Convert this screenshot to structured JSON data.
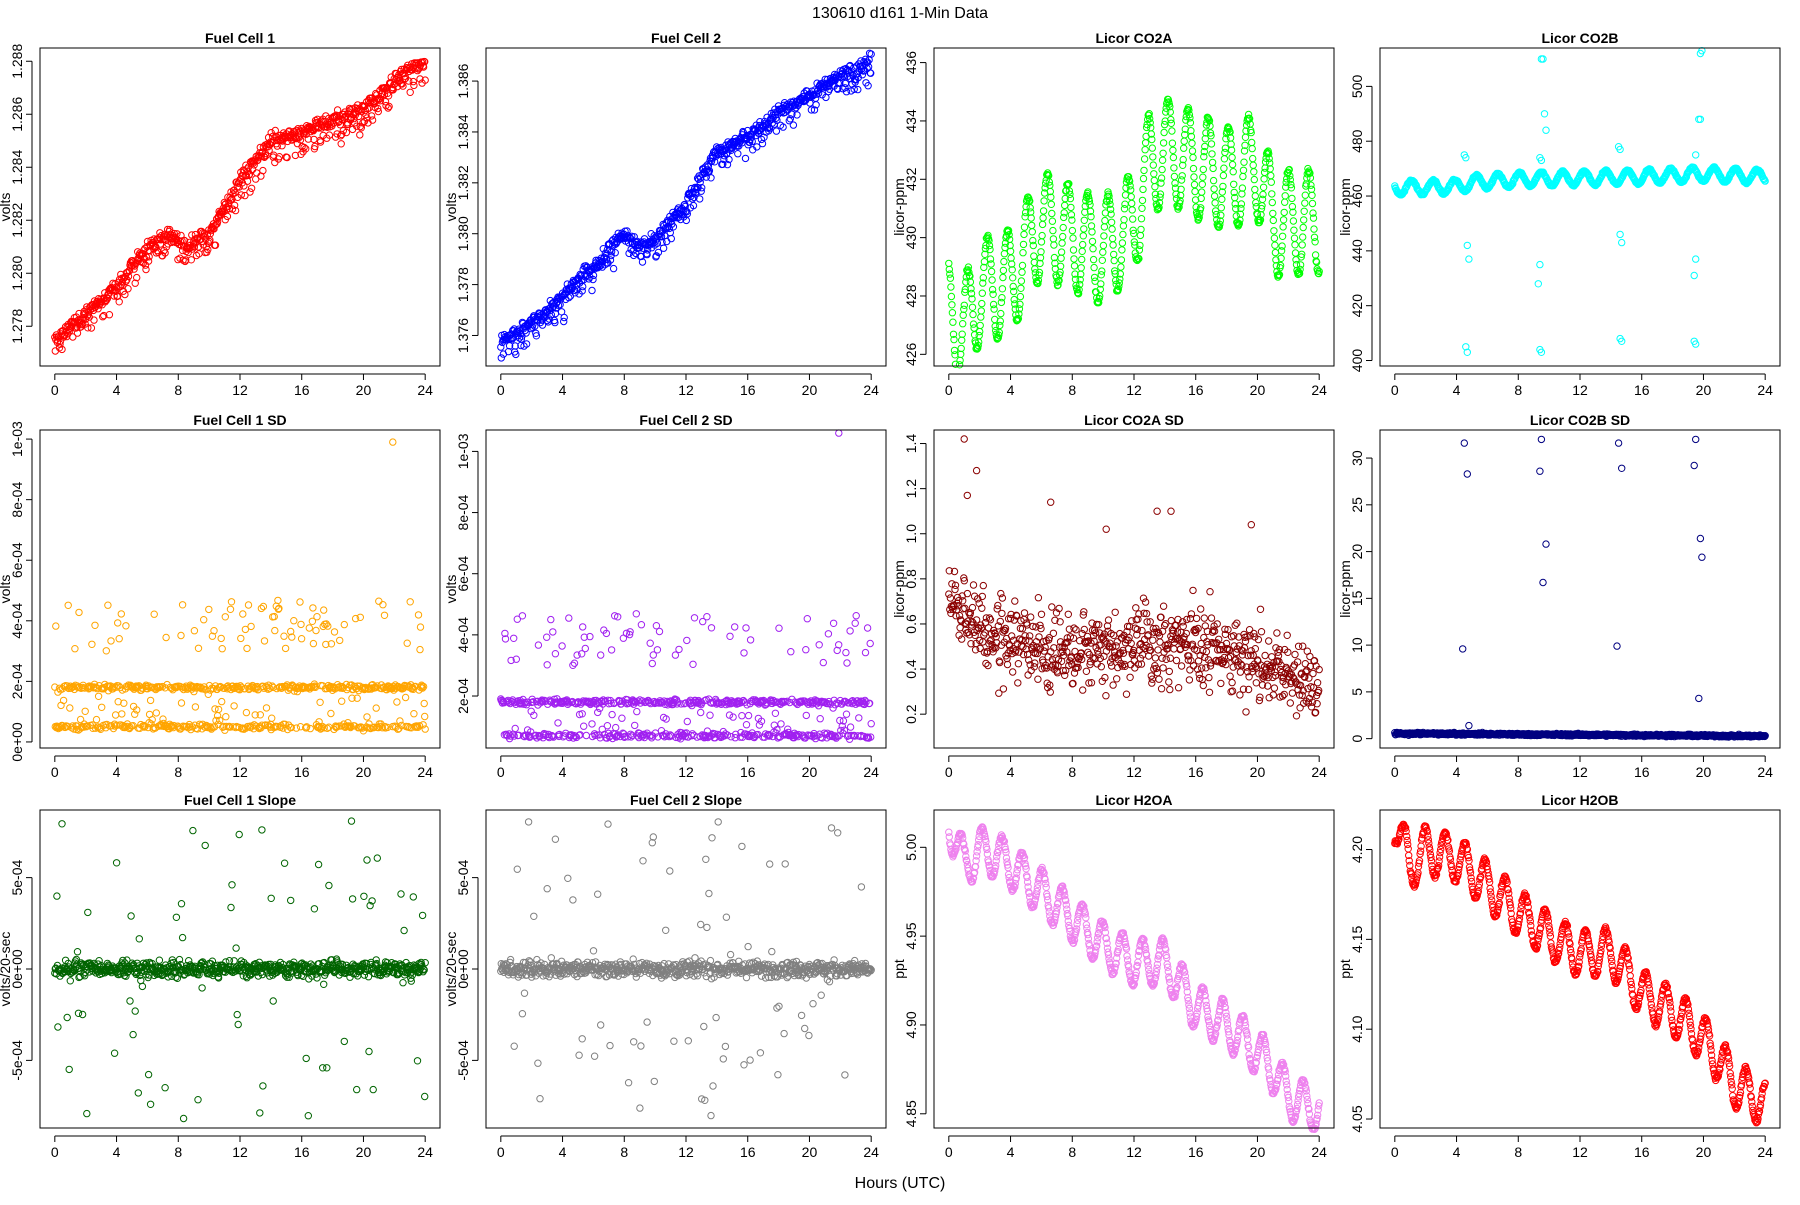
{
  "figure": {
    "title": "130610    d161    1-Min Data",
    "xlabel": "Hours (UTC)"
  },
  "chart_data": [
    {
      "type": "scatter",
      "title": "Fuel Cell 1",
      "ylabel": "volts",
      "color": "#ff0000",
      "xlim": [
        0,
        24
      ],
      "xticks": [
        0,
        4,
        8,
        12,
        16,
        20,
        24
      ],
      "ylim": [
        1.2765,
        1.2885
      ],
      "yticks": [
        1.278,
        1.28,
        1.282,
        1.284,
        1.286,
        1.288
      ],
      "ytick_labels": [
        "1.278",
        "1.280",
        "1.282",
        "1.284",
        "1.286",
        "1.288"
      ],
      "trend": [
        [
          0,
          1.2775
        ],
        [
          2,
          1.2785
        ],
        [
          4,
          1.2795
        ],
        [
          6,
          1.281
        ],
        [
          7.5,
          1.2815
        ],
        [
          8.5,
          1.281
        ],
        [
          10,
          1.2815
        ],
        [
          12,
          1.2835
        ],
        [
          14,
          1.285
        ],
        [
          16,
          1.2853
        ],
        [
          18,
          1.2858
        ],
        [
          20,
          1.2862
        ],
        [
          22,
          1.2873
        ],
        [
          24,
          1.288
        ]
      ],
      "pattern": "band",
      "spread": 0.00045,
      "lowtail": 0.0008
    },
    {
      "type": "scatter",
      "title": "Fuel Cell 2",
      "ylabel": "volts",
      "color": "#0000ff",
      "xlim": [
        0,
        24
      ],
      "xticks": [
        0,
        4,
        8,
        12,
        16,
        20,
        24
      ],
      "ylim": [
        1.3748,
        1.3873
      ],
      "yticks": [
        1.376,
        1.378,
        1.38,
        1.382,
        1.384,
        1.386
      ],
      "ytick_labels": [
        "1.376",
        "1.378",
        "1.380",
        "1.382",
        "1.384",
        "1.386"
      ],
      "trend": [
        [
          0,
          1.3758
        ],
        [
          2,
          1.3765
        ],
        [
          4,
          1.3775
        ],
        [
          5,
          1.3783
        ],
        [
          6,
          1.3786
        ],
        [
          7,
          1.3795
        ],
        [
          8,
          1.38
        ],
        [
          9,
          1.3795
        ],
        [
          10,
          1.3798
        ],
        [
          12,
          1.3812
        ],
        [
          14,
          1.3832
        ],
        [
          16,
          1.3838
        ],
        [
          18,
          1.3848
        ],
        [
          20,
          1.3855
        ],
        [
          22,
          1.3862
        ],
        [
          24,
          1.3868
        ]
      ],
      "pattern": "band",
      "spread": 0.00045,
      "lowtail": 0.0008
    },
    {
      "type": "scatter",
      "title": "Licor CO2A",
      "ylabel": "licor-ppm",
      "color": "#00ff00",
      "xlim": [
        0,
        24
      ],
      "xticks": [
        0,
        4,
        8,
        12,
        16,
        20,
        24
      ],
      "ylim": [
        425.6,
        436.5
      ],
      "yticks": [
        426,
        428,
        430,
        432,
        434,
        436
      ],
      "ytick_labels": [
        "426",
        "428",
        "430",
        "432",
        "434",
        "436"
      ],
      "trend": [
        [
          0,
          427.5
        ],
        [
          1,
          426.8
        ],
        [
          2,
          428.2
        ],
        [
          3,
          428.3
        ],
        [
          4,
          428.5
        ],
        [
          5,
          429.5
        ],
        [
          6,
          430.5
        ],
        [
          8,
          430.0
        ],
        [
          10,
          429.5
        ],
        [
          12,
          430.5
        ],
        [
          13,
          432.5
        ],
        [
          14,
          433.0
        ],
        [
          16,
          432.5
        ],
        [
          18,
          432.0
        ],
        [
          20,
          432.5
        ],
        [
          21,
          430.5
        ],
        [
          22,
          430.5
        ],
        [
          23,
          430.5
        ],
        [
          24,
          430.6
        ]
      ],
      "pattern": "osc",
      "amp": 1.8,
      "period": 1.3,
      "spread": 0.15
    },
    {
      "type": "scatter",
      "title": "Licor CO2B",
      "ylabel": "licor-ppm",
      "color": "#00ffff",
      "xlim": [
        0,
        24
      ],
      "xticks": [
        0,
        4,
        8,
        12,
        16,
        20,
        24
      ],
      "ylim": [
        398,
        514
      ],
      "yticks": [
        400,
        420,
        440,
        460,
        480,
        500
      ],
      "ytick_labels": [
        "400",
        "420",
        "440",
        "460",
        "480",
        "500"
      ],
      "trend": [
        [
          0,
          463
        ],
        [
          4,
          463.5
        ],
        [
          5,
          465
        ],
        [
          8,
          466
        ],
        [
          12,
          466.5
        ],
        [
          16,
          467
        ],
        [
          20,
          468
        ],
        [
          24,
          467
        ]
      ],
      "pattern": "osc",
      "amp": 2.5,
      "period": 1.4,
      "spread": 0.6,
      "outliers": [
        [
          4.5,
          475
        ],
        [
          4.6,
          474
        ],
        [
          4.7,
          442
        ],
        [
          4.8,
          437
        ],
        [
          4.6,
          405
        ],
        [
          4.7,
          403
        ],
        [
          9.4,
          474
        ],
        [
          9.5,
          473
        ],
        [
          9.5,
          510
        ],
        [
          9.6,
          510
        ],
        [
          9.7,
          490
        ],
        [
          9.8,
          484
        ],
        [
          9.4,
          435
        ],
        [
          9.3,
          428
        ],
        [
          9.4,
          404
        ],
        [
          9.5,
          403
        ],
        [
          14.5,
          478
        ],
        [
          14.6,
          477
        ],
        [
          14.6,
          446
        ],
        [
          14.7,
          443
        ],
        [
          14.6,
          408
        ],
        [
          14.7,
          407
        ],
        [
          19.5,
          475
        ],
        [
          19.7,
          488
        ],
        [
          19.8,
          488
        ],
        [
          19.8,
          512
        ],
        [
          19.9,
          513
        ],
        [
          19.5,
          437
        ],
        [
          19.4,
          431
        ],
        [
          19.4,
          407
        ],
        [
          19.5,
          406
        ]
      ]
    },
    {
      "type": "scatter",
      "title": "Fuel Cell 1 SD",
      "ylabel": "volts",
      "color": "#ffa500",
      "xlim": [
        0,
        24
      ],
      "xticks": [
        0,
        4,
        8,
        12,
        16,
        20,
        24
      ],
      "ylim": [
        -2e-05,
        0.00103
      ],
      "yticks": [
        0,
        0.0002,
        0.0004,
        0.0006,
        0.0008,
        0.001
      ],
      "ytick_labels": [
        "0e+00",
        "2e-04",
        "4e-04",
        "6e-04",
        "8e-04",
        "1e-03"
      ],
      "pattern": "levels",
      "levels": [
        0.00018,
        5e-05
      ],
      "level_spread": 1.5e-05,
      "upper": [
        0.0003,
        0.00047
      ],
      "outliers": [
        [
          21.9,
          0.00099
        ]
      ]
    },
    {
      "type": "scatter",
      "title": "Fuel Cell 2 SD",
      "ylabel": "volts",
      "color": "#a020f0",
      "xlim": [
        0,
        24
      ],
      "xticks": [
        0,
        4,
        8,
        12,
        16,
        20,
        24
      ],
      "ylim": [
        3e-05,
        0.00107
      ],
      "yticks": [
        0.0002,
        0.0004,
        0.0006,
        0.0008,
        0.001
      ],
      "ytick_labels": [
        "2e-04",
        "4e-04",
        "6e-04",
        "8e-04",
        "1e-03"
      ],
      "pattern": "levels",
      "levels": [
        0.00018,
        7e-05
      ],
      "level_spread": 1.5e-05,
      "upper": [
        0.0003,
        0.00047
      ],
      "outliers": [
        [
          21.9,
          0.00106
        ]
      ]
    },
    {
      "type": "scatter",
      "title": "Licor CO2A SD",
      "ylabel": "licor-ppm",
      "color": "#8b0000",
      "xlim": [
        0,
        24
      ],
      "xticks": [
        0,
        4,
        8,
        12,
        16,
        20,
        24
      ],
      "ylim": [
        0.05,
        1.46
      ],
      "yticks": [
        0.2,
        0.4,
        0.6,
        0.8,
        1.0,
        1.2,
        1.4
      ],
      "ytick_labels": [
        "0.2",
        "0.4",
        "0.6",
        "0.8",
        "1.0",
        "1.2",
        "1.4"
      ],
      "pattern": "cloud",
      "trend": [
        [
          0,
          0.75
        ],
        [
          2,
          0.55
        ],
        [
          6,
          0.5
        ],
        [
          12,
          0.5
        ],
        [
          16,
          0.5
        ],
        [
          20,
          0.45
        ],
        [
          24,
          0.3
        ]
      ],
      "spread": 0.18,
      "outliers": [
        [
          1.0,
          1.42
        ],
        [
          1.8,
          1.28
        ],
        [
          1.2,
          1.17
        ],
        [
          6.6,
          1.14
        ],
        [
          13.5,
          1.1
        ],
        [
          14.4,
          1.1
        ],
        [
          10.2,
          1.02
        ],
        [
          19.6,
          1.04
        ]
      ]
    },
    {
      "type": "scatter",
      "title": "Licor CO2B SD",
      "ylabel": "licor-ppm",
      "color": "#000080",
      "xlim": [
        0,
        24
      ],
      "xticks": [
        0,
        4,
        8,
        12,
        16,
        20,
        24
      ],
      "ylim": [
        -1,
        33
      ],
      "yticks": [
        0,
        5,
        10,
        15,
        20,
        25,
        30
      ],
      "ytick_labels": [
        "0",
        "5",
        "10",
        "15",
        "20",
        "25",
        "30"
      ],
      "pattern": "flat",
      "base": 0.55,
      "spread": 0.2,
      "outliers": [
        [
          4.5,
          31.6
        ],
        [
          4.7,
          28.3
        ],
        [
          4.4,
          9.6
        ],
        [
          4.8,
          1.4
        ],
        [
          9.5,
          32.0
        ],
        [
          9.4,
          28.6
        ],
        [
          9.8,
          20.8
        ],
        [
          9.6,
          16.7
        ],
        [
          14.5,
          31.6
        ],
        [
          14.7,
          28.9
        ],
        [
          14.4,
          9.9
        ],
        [
          19.5,
          32.0
        ],
        [
          19.4,
          29.2
        ],
        [
          19.8,
          21.4
        ],
        [
          19.9,
          19.4
        ],
        [
          19.7,
          4.3
        ]
      ]
    },
    {
      "type": "scatter",
      "title": "Fuel Cell 1 Slope",
      "ylabel": "volts/20-sec",
      "color": "#006400",
      "xlim": [
        0,
        24
      ],
      "xticks": [
        0,
        4,
        8,
        12,
        16,
        20,
        24
      ],
      "ylim": [
        -0.00087,
        0.00087
      ],
      "yticks": [
        -0.0005,
        0,
        0.0005
      ],
      "ytick_labels": [
        "-5e-04",
        "0e+00",
        "5e-04"
      ],
      "pattern": "slope",
      "core": 4.5e-05,
      "wide": 0.00082
    },
    {
      "type": "scatter",
      "title": "Fuel Cell 2 Slope",
      "ylabel": "volts/20-sec",
      "color": "#808080",
      "xlim": [
        0,
        24
      ],
      "xticks": [
        0,
        4,
        8,
        12,
        16,
        20,
        24
      ],
      "ylim": [
        -0.00087,
        0.00087
      ],
      "yticks": [
        -0.0005,
        0,
        0.0005
      ],
      "ytick_labels": [
        "-5e-04",
        "0e+00",
        "5e-04"
      ],
      "pattern": "slope",
      "core": 4.5e-05,
      "wide": 0.00082
    },
    {
      "type": "scatter",
      "title": "Licor H2OA",
      "ylabel": "ppt",
      "color": "#ee82ee",
      "xlim": [
        0,
        24
      ],
      "xticks": [
        0,
        4,
        8,
        12,
        16,
        20,
        24
      ],
      "ylim": [
        4.842,
        5.021
      ],
      "yticks": [
        4.85,
        4.9,
        4.95,
        5.0
      ],
      "ytick_labels": [
        "4.85",
        "4.90",
        "4.95",
        "5.00"
      ],
      "trend": [
        [
          0,
          5.015
        ],
        [
          1,
          4.99
        ],
        [
          2,
          4.998
        ],
        [
          3,
          4.996
        ],
        [
          4,
          4.99
        ],
        [
          6,
          4.975
        ],
        [
          8,
          4.96
        ],
        [
          10,
          4.945
        ],
        [
          12,
          4.935
        ],
        [
          14,
          4.935
        ],
        [
          16,
          4.91
        ],
        [
          18,
          4.9
        ],
        [
          20,
          4.885
        ],
        [
          21,
          4.875
        ],
        [
          22,
          4.86
        ],
        [
          24,
          4.852
        ]
      ],
      "pattern": "osc",
      "amp": 0.013,
      "period": 1.3,
      "spread": 0.002
    },
    {
      "type": "scatter",
      "title": "Licor H2OB",
      "ylabel": "ppt",
      "color": "#ff0000",
      "xlim": [
        0,
        24
      ],
      "xticks": [
        0,
        4,
        8,
        12,
        16,
        20,
        24
      ],
      "ylim": [
        4.045,
        4.222
      ],
      "yticks": [
        4.05,
        4.1,
        4.15,
        4.2
      ],
      "ytick_labels": [
        "4.05",
        "4.10",
        "4.15",
        "4.20"
      ],
      "trend": [
        [
          0,
          4.218
        ],
        [
          1,
          4.19
        ],
        [
          2,
          4.2
        ],
        [
          3,
          4.197
        ],
        [
          4,
          4.195
        ],
        [
          6,
          4.18
        ],
        [
          8,
          4.165
        ],
        [
          10,
          4.152
        ],
        [
          12,
          4.142
        ],
        [
          14,
          4.143
        ],
        [
          16,
          4.12
        ],
        [
          18,
          4.11
        ],
        [
          20,
          4.095
        ],
        [
          21,
          4.083
        ],
        [
          22,
          4.07
        ],
        [
          24,
          4.058
        ]
      ],
      "pattern": "osc",
      "amp": 0.013,
      "period": 1.3,
      "spread": 0.002
    }
  ]
}
